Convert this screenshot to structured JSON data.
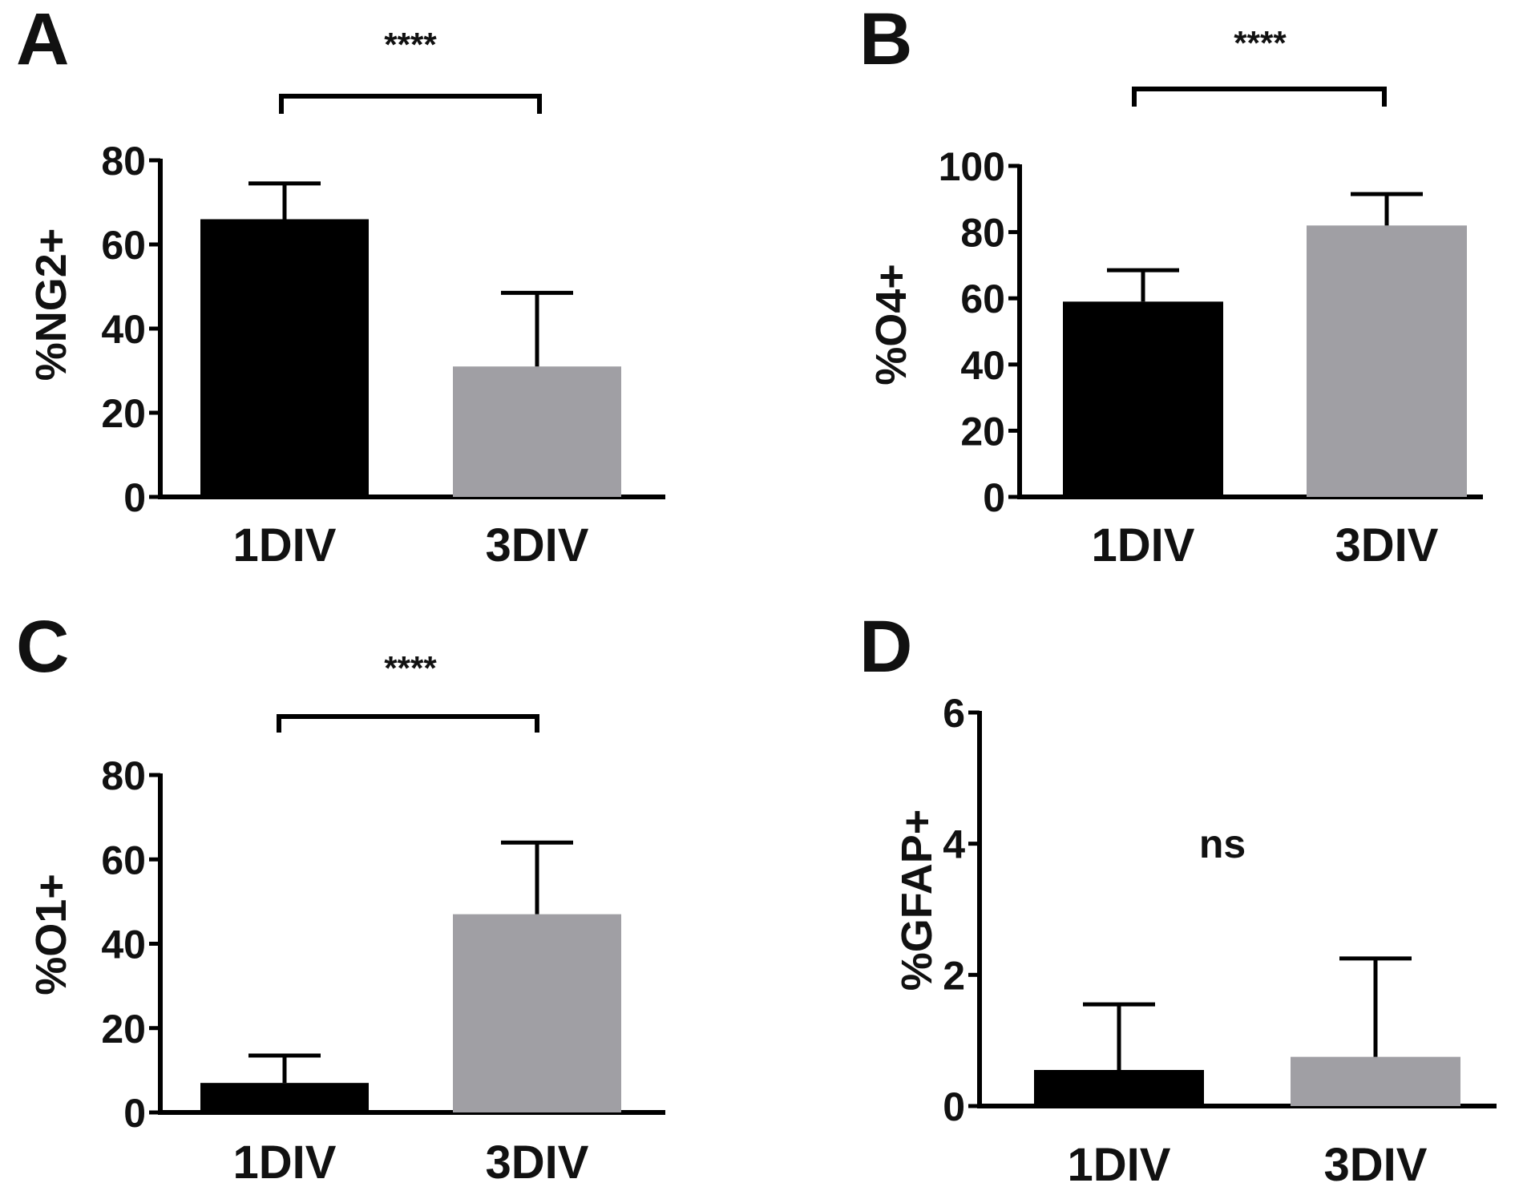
{
  "chart_data": [
    {
      "panel": "A",
      "type": "bar",
      "categories": [
        "1DIV",
        "3DIV"
      ],
      "values": [
        66,
        31
      ],
      "errors": [
        8.5,
        17.5
      ],
      "colors": [
        "#000000",
        "#a09fa4"
      ],
      "ylabel": "%NG2+",
      "ylim": [
        0,
        80
      ],
      "yticks": [
        "0",
        "20",
        "40",
        "60",
        "80"
      ],
      "significance": "****"
    },
    {
      "panel": "B",
      "type": "bar",
      "categories": [
        "1DIV",
        "3DIV"
      ],
      "values": [
        59,
        82
      ],
      "errors": [
        9.5,
        9.5
      ],
      "colors": [
        "#000000",
        "#a09fa4"
      ],
      "ylabel": "%O4+",
      "ylim": [
        0,
        100
      ],
      "yticks": [
        "0",
        "20",
        "40",
        "60",
        "80",
        "100"
      ],
      "significance": "****"
    },
    {
      "panel": "C",
      "type": "bar",
      "categories": [
        "1DIV",
        "3DIV"
      ],
      "values": [
        7,
        47
      ],
      "errors": [
        6.5,
        17
      ],
      "colors": [
        "#000000",
        "#a09fa4"
      ],
      "ylabel": "%O1+",
      "ylim": [
        0,
        80
      ],
      "yticks": [
        "0",
        "20",
        "40",
        "60",
        "80"
      ],
      "significance": "****"
    },
    {
      "panel": "D",
      "type": "bar",
      "categories": [
        "1DIV",
        "3DIV"
      ],
      "values": [
        0.55,
        0.75
      ],
      "errors": [
        1.0,
        1.5
      ],
      "colors": [
        "#000000",
        "#a09fa4"
      ],
      "ylabel": "%GFAP+",
      "ylim": [
        0,
        6
      ],
      "yticks": [
        "0",
        "2",
        "4",
        "6"
      ],
      "significance": "ns"
    }
  ]
}
